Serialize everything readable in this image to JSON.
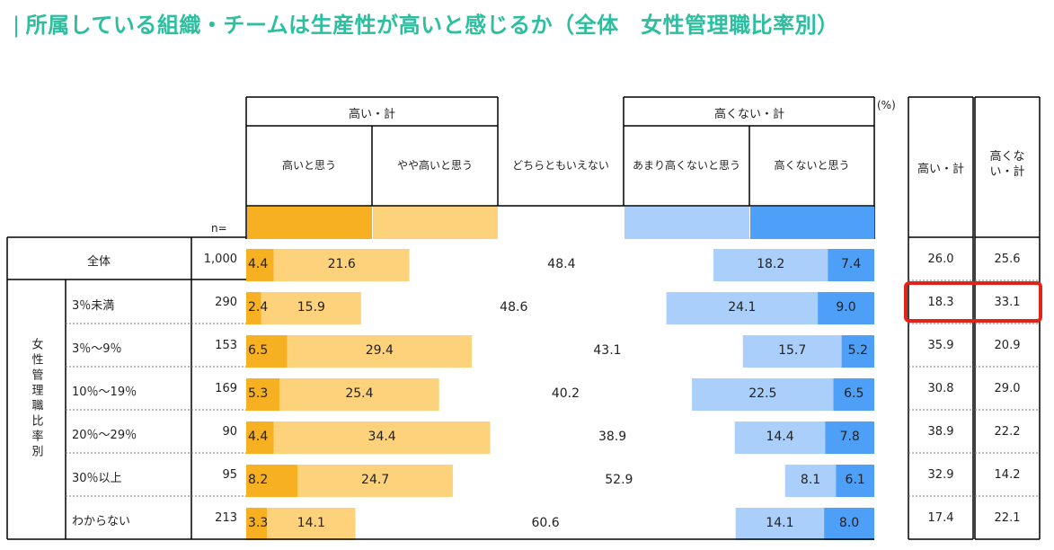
{
  "title": "所属している組織・チームは生産性が高いと感じるか（全体　女性管理職比率別）",
  "title_bar": "|",
  "unit": "(%)",
  "n_label": "n=",
  "group_label": "女性管理職比率別",
  "colors": [
    "#f7b021",
    "#fdd27a",
    "#ffffff",
    "#a9cffa",
    "#4d9ff7"
  ],
  "chart_data": {
    "type": "stacked-bar-100",
    "title": "所属している組織・チームは生産性が高いと感じるか（全体　女性管理職比率別）",
    "group_headers": {
      "high_total": "高い・計",
      "low_total": "高くない・計"
    },
    "categories_legend": [
      "高いと思う",
      "やや高いと思う",
      "どちらともいえない",
      "あまり高くないと思う",
      "高くないと思う"
    ],
    "summary_headers": [
      "高い・計",
      "高くない・計"
    ],
    "rows": [
      {
        "label": "全体",
        "n": "1,000",
        "values": [
          "4.4",
          "21.6",
          "48.4",
          "18.2",
          "7.4"
        ],
        "high": "26.0",
        "low": "25.6"
      },
      {
        "label": "3％未満",
        "n": "290",
        "values": [
          "2.4",
          "15.9",
          "48.6",
          "24.1",
          "9.0"
        ],
        "high": "18.3",
        "low": "33.1"
      },
      {
        "label": "3％～9％",
        "n": "153",
        "values": [
          "6.5",
          "29.4",
          "43.1",
          "15.7",
          "5.2"
        ],
        "high": "35.9",
        "low": "20.9"
      },
      {
        "label": "10％～19％",
        "n": "169",
        "values": [
          "5.3",
          "25.4",
          "40.2",
          "22.5",
          "6.5"
        ],
        "high": "30.8",
        "low": "29.0"
      },
      {
        "label": "20％～29％",
        "n": "90",
        "values": [
          "4.4",
          "34.4",
          "38.9",
          "14.4",
          "7.8"
        ],
        "high": "38.9",
        "low": "22.2"
      },
      {
        "label": "30％以上",
        "n": "95",
        "values": [
          "8.2",
          "24.7",
          "52.9",
          "8.1",
          "6.1"
        ],
        "high": "32.9",
        "low": "14.2"
      },
      {
        "label": "わからない",
        "n": "213",
        "values": [
          "3.3",
          "14.1",
          "60.6",
          "14.1",
          "8.0"
        ],
        "high": "17.4",
        "low": "22.1"
      }
    ],
    "highlight_row": "3％未満"
  }
}
